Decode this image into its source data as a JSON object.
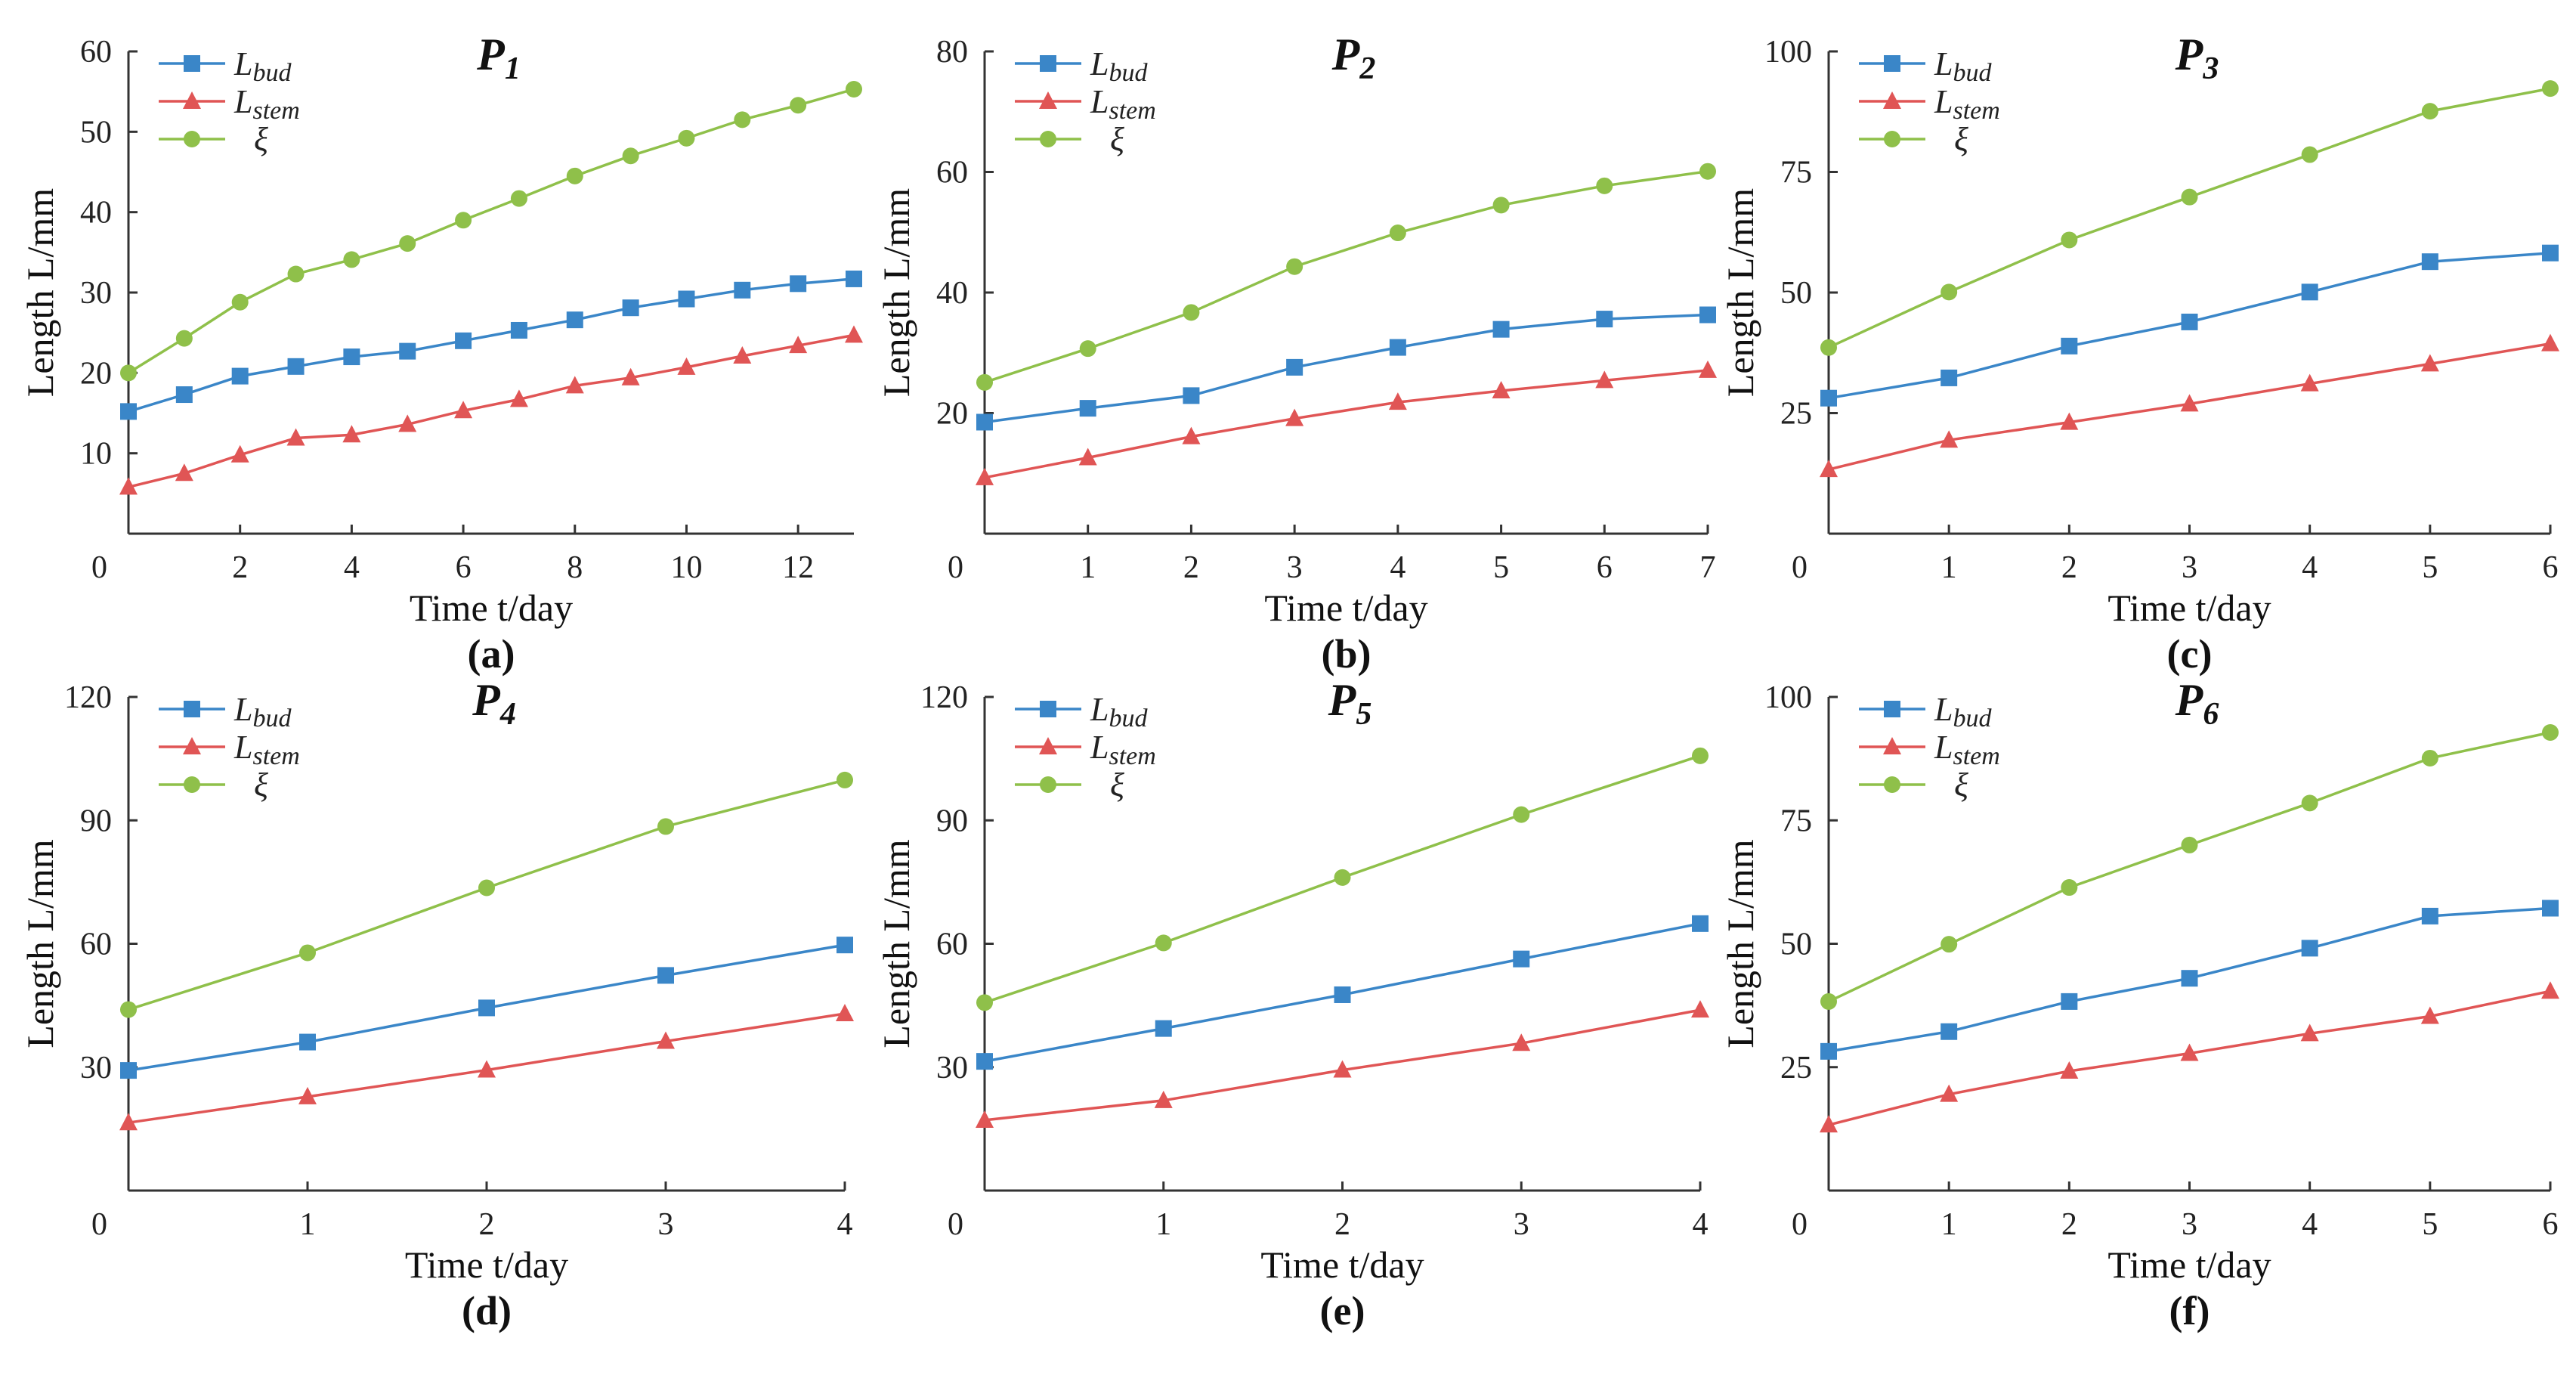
{
  "colors": {
    "bud": "#3a86c8",
    "stem": "#e05555",
    "xi": "#8fc04a",
    "axis": "#333333"
  },
  "chart_data": [
    {
      "type": "line",
      "panel_label": "(a)",
      "title": "P1",
      "title_main": "P",
      "title_sub": "1",
      "xlabel": "Time t/day",
      "ylabel": "Length L/mm",
      "xlim": [
        0,
        13
      ],
      "ylim": [
        0,
        60
      ],
      "xticks": [
        0,
        2,
        4,
        6,
        8,
        10,
        12
      ],
      "yticks": [
        10,
        20,
        30,
        40,
        50,
        60
      ],
      "legend": [
        "L_bud",
        "L_stem",
        "ξ"
      ],
      "x": [
        0,
        1,
        2,
        3,
        4,
        5,
        6,
        7,
        8,
        9,
        10,
        11,
        12,
        13
      ],
      "series": [
        {
          "name": "L_bud",
          "marker": "square",
          "values": [
            15.2,
            17.3,
            19.6,
            20.8,
            22,
            22.7,
            24,
            25.3,
            26.6,
            28.1,
            29.2,
            30.3,
            31.1,
            31.7
          ]
        },
        {
          "name": "L_stem",
          "marker": "triangle",
          "values": [
            5.8,
            7.5,
            9.8,
            11.9,
            12.3,
            13.6,
            15.3,
            16.7,
            18.4,
            19.4,
            20.7,
            22.1,
            23.4,
            24.7
          ]
        },
        {
          "name": "ξ",
          "marker": "circle",
          "values": [
            20,
            24.3,
            28.8,
            32.3,
            34.1,
            36.1,
            39,
            41.7,
            44.5,
            47,
            49.2,
            51.5,
            53.3,
            55.3
          ]
        }
      ]
    },
    {
      "type": "line",
      "panel_label": "(b)",
      "title": "P2",
      "title_main": "P",
      "title_sub": "2",
      "xlabel": "Time t/day",
      "ylabel": "Length L/mm",
      "xlim": [
        0,
        7
      ],
      "ylim": [
        0,
        80
      ],
      "xticks": [
        0,
        1,
        2,
        3,
        4,
        5,
        6,
        7
      ],
      "yticks": [
        20,
        40,
        60,
        80
      ],
      "legend": [
        "L_bud",
        "L_stem",
        "ξ"
      ],
      "x": [
        0,
        1,
        2,
        3,
        4,
        5,
        6,
        7
      ],
      "series": [
        {
          "name": "L_bud",
          "marker": "square",
          "values": [
            18.5,
            20.8,
            22.9,
            27.6,
            30.9,
            33.9,
            35.6,
            36.3
          ]
        },
        {
          "name": "L_stem",
          "marker": "triangle",
          "values": [
            9.3,
            12.6,
            16.1,
            19.1,
            21.8,
            23.7,
            25.4,
            27.1
          ]
        },
        {
          "name": "ξ",
          "marker": "circle",
          "values": [
            25.1,
            30.7,
            36.7,
            44.3,
            49.9,
            54.5,
            57.7,
            60.1
          ]
        }
      ]
    },
    {
      "type": "line",
      "panel_label": "(c)",
      "title": "P3",
      "title_main": "P",
      "title_sub": "3",
      "xlabel": "Time t/day",
      "ylabel": "Length L/mm",
      "xlim": [
        0,
        6
      ],
      "ylim": [
        0,
        100
      ],
      "xticks": [
        0,
        1,
        2,
        3,
        4,
        5,
        6
      ],
      "yticks": [
        25,
        50,
        75,
        100
      ],
      "legend": [
        "L_bud",
        "L_stem",
        "ξ"
      ],
      "x": [
        0,
        1,
        2,
        3,
        4,
        5,
        6
      ],
      "series": [
        {
          "name": "L_bud",
          "marker": "square",
          "values": [
            28.1,
            32.3,
            38.9,
            43.9,
            50.1,
            56.4,
            58.2
          ]
        },
        {
          "name": "L_stem",
          "marker": "triangle",
          "values": [
            13.3,
            19.4,
            23.1,
            26.9,
            31.1,
            35.2,
            39.4
          ]
        },
        {
          "name": "ξ",
          "marker": "circle",
          "values": [
            38.6,
            50.1,
            60.9,
            69.8,
            78.6,
            87.6,
            92.3
          ]
        }
      ]
    },
    {
      "type": "line",
      "panel_label": "(d)",
      "title": "P4",
      "title_main": "P",
      "title_sub": "4",
      "xlabel": "Time t/day",
      "ylabel": "Length L/mm",
      "xlim": [
        0,
        4
      ],
      "ylim": [
        0,
        120
      ],
      "xticks": [
        0,
        1,
        2,
        3,
        4
      ],
      "yticks": [
        30,
        60,
        90,
        120
      ],
      "legend": [
        "L_bud",
        "L_stem",
        "ξ"
      ],
      "x": [
        0,
        1,
        2,
        3,
        4
      ],
      "series": [
        {
          "name": "L_bud",
          "marker": "square",
          "values": [
            29.2,
            36.1,
            44.4,
            52.3,
            59.7
          ]
        },
        {
          "name": "L_stem",
          "marker": "triangle",
          "values": [
            16.5,
            22.8,
            29.3,
            36.3,
            43
          ]
        },
        {
          "name": "ξ",
          "marker": "circle",
          "values": [
            44,
            57.8,
            73.6,
            88.5,
            99.8
          ]
        }
      ]
    },
    {
      "type": "line",
      "panel_label": "(e)",
      "title": "P5",
      "title_main": "P",
      "title_sub": "5",
      "xlabel": "Time t/day",
      "ylabel": "Length L/mm",
      "xlim": [
        0,
        4
      ],
      "ylim": [
        0,
        120
      ],
      "xticks": [
        0,
        1,
        2,
        3,
        4
      ],
      "yticks": [
        30,
        60,
        90,
        120
      ],
      "legend": [
        "L_bud",
        "L_stem",
        "ξ"
      ],
      "x": [
        0,
        1,
        2,
        3,
        4
      ],
      "series": [
        {
          "name": "L_bud",
          "marker": "square",
          "values": [
            31.4,
            39.4,
            47.6,
            56.3,
            64.9
          ]
        },
        {
          "name": "L_stem",
          "marker": "triangle",
          "values": [
            17.1,
            21.9,
            29.3,
            35.8,
            43.9
          ]
        },
        {
          "name": "ξ",
          "marker": "circle",
          "values": [
            45.7,
            60.2,
            76.1,
            91.4,
            105.7
          ]
        }
      ]
    },
    {
      "type": "line",
      "panel_label": "(f)",
      "title": "P6",
      "title_main": "P",
      "title_sub": "6",
      "xlabel": "Time t/day",
      "ylabel": "Length L/mm",
      "xlim": [
        0,
        6
      ],
      "ylim": [
        0,
        100
      ],
      "xticks": [
        0,
        1,
        2,
        3,
        4,
        5,
        6
      ],
      "yticks": [
        25,
        50,
        75,
        100
      ],
      "legend": [
        "L_bud",
        "L_stem",
        "ξ"
      ],
      "x": [
        0,
        1,
        2,
        3,
        4,
        5,
        6
      ],
      "series": [
        {
          "name": "L_bud",
          "marker": "square",
          "values": [
            28.2,
            32.2,
            38.3,
            43,
            49.1,
            55.6,
            57.2
          ]
        },
        {
          "name": "L_stem",
          "marker": "triangle",
          "values": [
            13.3,
            19.5,
            24.2,
            27.8,
            31.8,
            35.3,
            40.4
          ]
        },
        {
          "name": "ξ",
          "marker": "circle",
          "values": [
            38.3,
            49.9,
            61.4,
            70,
            78.5,
            87.6,
            92.8
          ]
        }
      ]
    }
  ]
}
